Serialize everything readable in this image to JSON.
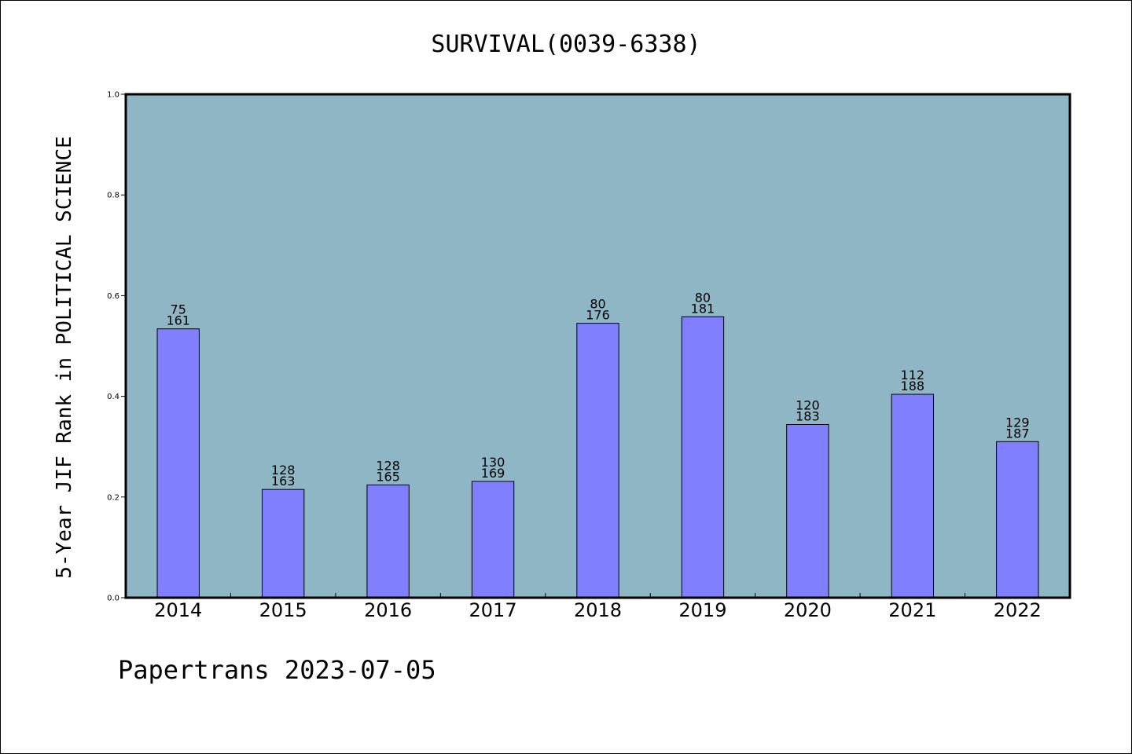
{
  "chart_data": {
    "type": "bar",
    "title": "SURVIVAL(0039-6338)",
    "ylabel": "5-Year JIF Rank in POLITICAL SCIENCE",
    "xlabel": "",
    "ylim": [
      0,
      1.0
    ],
    "yticks": [
      "0.0",
      "0.2",
      "0.4",
      "0.6",
      "0.8",
      "1.0"
    ],
    "categories": [
      "2014",
      "2015",
      "2016",
      "2017",
      "2018",
      "2019",
      "2020",
      "2021",
      "2022"
    ],
    "values": [
      0.534,
      0.215,
      0.224,
      0.231,
      0.545,
      0.558,
      0.344,
      0.404,
      0.31
    ],
    "rank": [
      "75",
      "128",
      "128",
      "130",
      "80",
      "80",
      "120",
      "112",
      "129"
    ],
    "total": [
      "161",
      "163",
      "165",
      "169",
      "176",
      "181",
      "183",
      "188",
      "187"
    ],
    "bar_color": "#8080ff",
    "plot_background": "#8fb6c5",
    "grid": false,
    "legend": "none"
  },
  "footer": "Papertrans 2023-07-05"
}
